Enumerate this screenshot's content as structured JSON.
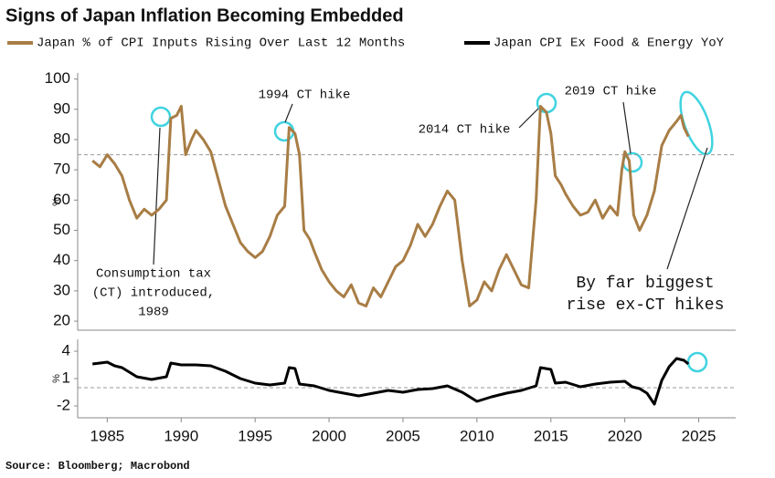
{
  "title": "Signs of Japan Inflation Becoming Embedded",
  "source": "Source: Bloomberg; Macrobond",
  "chart_data": [
    {
      "type": "line",
      "ylabel": "%",
      "series": [
        {
          "name": "Japan % of CPI Inputs Rising Over Last 12 Months",
          "color": "#a87d45",
          "x": [
            1984,
            1984.5,
            1985,
            1985.5,
            1986,
            1986.5,
            1987,
            1987.5,
            1988,
            1988.5,
            1989,
            1989.3,
            1989.7,
            1990,
            1990.3,
            1990.7,
            1991,
            1991.5,
            1992,
            1992.5,
            1993,
            1993.5,
            1994,
            1994.5,
            1995,
            1995.5,
            1996,
            1996.5,
            1997,
            1997.3,
            1997.7,
            1998,
            1998.3,
            1998.7,
            1999,
            1999.5,
            2000,
            2000.5,
            2001,
            2001.5,
            2002,
            2002.5,
            2003,
            2003.5,
            2004,
            2004.5,
            2005,
            2005.5,
            2006,
            2006.5,
            2007,
            2007.5,
            2008,
            2008.5,
            2009,
            2009.5,
            2010,
            2010.5,
            2011,
            2011.5,
            2012,
            2012.5,
            2013,
            2013.5,
            2014,
            2014.3,
            2014.7,
            2015,
            2015.3,
            2015.7,
            2016,
            2016.5,
            2017,
            2017.5,
            2018,
            2018.5,
            2019,
            2019.5,
            2019.8,
            2020,
            2020.3,
            2020.6,
            2021,
            2021.5,
            2022,
            2022.5,
            2023,
            2023.5,
            2023.8,
            2024,
            2024.3
          ],
          "values": [
            73,
            71,
            75,
            72,
            68,
            60,
            54,
            57,
            55,
            57,
            60,
            87,
            88,
            91,
            75,
            80,
            83,
            80,
            76,
            67,
            58,
            52,
            46,
            43,
            41,
            43,
            48,
            55,
            58,
            84,
            82,
            75,
            50,
            47,
            43,
            37,
            33,
            30,
            28,
            32,
            26,
            25,
            31,
            28,
            33,
            38,
            40,
            45,
            52,
            48,
            52,
            58,
            63,
            60,
            40,
            25,
            27,
            33,
            30,
            37,
            42,
            37,
            32,
            31,
            60,
            91,
            89,
            82,
            68,
            65,
            62,
            58,
            55,
            56,
            60,
            54,
            58,
            55,
            70,
            76,
            73,
            55,
            50,
            55,
            63,
            78,
            83,
            86,
            88,
            84,
            81
          ]
        }
      ],
      "xlim": [
        1983,
        2027.5
      ],
      "ylim": [
        17,
        102
      ],
      "yticks": [
        20,
        30,
        40,
        50,
        60,
        70,
        80,
        90,
        100
      ],
      "reference_line": 75,
      "annotations": [
        {
          "text": [
            "Consumption tax",
            "(CT) introduced,",
            "1989"
          ]
        },
        {
          "text": [
            "1994 CT hike"
          ]
        },
        {
          "text": [
            "2014 CT hike"
          ]
        },
        {
          "text": [
            "2019 CT hike"
          ]
        },
        {
          "text": [
            "By far biggest",
            "rise ex-CT hikes"
          ]
        }
      ]
    },
    {
      "type": "line",
      "ylabel": "%",
      "series": [
        {
          "name": "Japan CPI Ex Food & Energy YoY",
          "color": "#000000",
          "x": [
            1984,
            1985,
            1985.5,
            1986,
            1987,
            1988,
            1989,
            1989.3,
            1990,
            1991,
            1992,
            1993,
            1994,
            1995,
            1996,
            1997,
            1997.3,
            1997.7,
            1998,
            1999,
            2000,
            2001,
            2002,
            2003,
            2004,
            2005,
            2006,
            2007,
            2008,
            2009,
            2010,
            2011,
            2012,
            2013,
            2014,
            2014.3,
            2015,
            2015.3,
            2016,
            2017,
            2018,
            2019,
            2020,
            2020.5,
            2021,
            2021.5,
            2022,
            2022.5,
            2023,
            2023.5,
            2024,
            2024.3
          ],
          "values": [
            2.6,
            2.8,
            2.4,
            2.2,
            1.2,
            0.9,
            1.2,
            2.7,
            2.5,
            2.5,
            2.4,
            1.8,
            1.0,
            0.5,
            0.3,
            0.5,
            2.2,
            2.1,
            0.4,
            0.2,
            -0.3,
            -0.6,
            -0.9,
            -0.6,
            -0.3,
            -0.5,
            -0.2,
            -0.1,
            0.2,
            -0.5,
            -1.5,
            -1.0,
            -0.6,
            -0.3,
            0.2,
            2.2,
            2.0,
            0.5,
            0.6,
            0.1,
            0.4,
            0.6,
            0.7,
            0.1,
            -0.1,
            -0.6,
            -1.8,
            0.8,
            2.3,
            3.2,
            3.0,
            2.6
          ]
        }
      ],
      "xlim": [
        1983,
        2027.5
      ],
      "ylim": [
        -3.3,
        5.3
      ],
      "yticks": [
        -2,
        1,
        4
      ],
      "xticks": [
        1985,
        1990,
        1995,
        2000,
        2005,
        2010,
        2015,
        2020,
        2025
      ],
      "reference_line": 0
    }
  ]
}
